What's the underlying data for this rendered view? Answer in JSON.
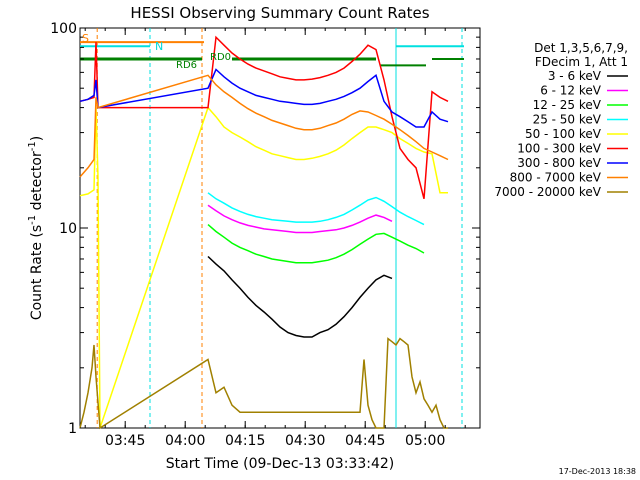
{
  "chart_data": {
    "type": "line",
    "title": "HESSI Observing Summary Count Rates",
    "xlabel": "Start Time (09-Dec-13 03:33:42)",
    "ylabel_main": "Count Rate (s",
    "ylabel_sup1": "-1",
    "ylabel_mid": " detector",
    "ylabel_sup2": "-1",
    "ylabel_end": ")",
    "y_scale": "log",
    "ylim": [
      1,
      100
    ],
    "xlim_minutes": [
      0,
      100
    ],
    "x_ticks": [
      {
        "m": 11.3,
        "label": "03:45"
      },
      {
        "m": 26.3,
        "label": "04:00"
      },
      {
        "m": 41.3,
        "label": "04:15"
      },
      {
        "m": 56.3,
        "label": "04:30"
      },
      {
        "m": 71.3,
        "label": "04:45"
      },
      {
        "m": 86.3,
        "label": "05:00"
      }
    ],
    "y_ticks": [
      {
        "v": 1,
        "label": "1"
      },
      {
        "v": 10,
        "label": "10"
      },
      {
        "v": 100,
        "label": "100"
      }
    ],
    "legend_header": [
      "Det 1,3,5,6,7,9,",
      "FDecim 1, Att 1"
    ],
    "series": [
      {
        "name": "3 - 6 keV",
        "color": "#000000",
        "x": [
          32,
          34,
          36,
          38,
          40,
          42,
          44,
          46,
          48,
          50,
          52,
          54,
          56,
          58,
          60,
          62,
          64,
          66,
          68,
          70,
          72,
          74,
          76,
          78
        ],
        "y": [
          7.2,
          6.6,
          6.1,
          5.5,
          5.0,
          4.5,
          4.1,
          3.8,
          3.5,
          3.2,
          3.0,
          2.9,
          2.85,
          2.85,
          3.0,
          3.1,
          3.3,
          3.6,
          4.0,
          4.5,
          5.0,
          5.5,
          5.8,
          5.6
        ]
      },
      {
        "name": "6 - 12 keV",
        "color": "#ff00ff",
        "x": [
          32,
          34,
          36,
          38,
          40,
          42,
          44,
          46,
          48,
          50,
          52,
          54,
          56,
          58,
          60,
          62,
          64,
          66,
          68,
          70,
          72,
          74,
          76,
          78
        ],
        "y": [
          13.0,
          12.2,
          11.5,
          11.0,
          10.6,
          10.3,
          10.1,
          9.9,
          9.8,
          9.7,
          9.6,
          9.5,
          9.5,
          9.5,
          9.6,
          9.7,
          9.8,
          10.0,
          10.3,
          10.7,
          11.2,
          11.6,
          11.3,
          10.8
        ]
      },
      {
        "name": "12 - 25 keV",
        "color": "#00ff00",
        "x": [
          32,
          34,
          36,
          38,
          40,
          42,
          44,
          46,
          48,
          50,
          52,
          54,
          56,
          58,
          60,
          62,
          64,
          66,
          68,
          70,
          72,
          74,
          76,
          78,
          80,
          82,
          84,
          86
        ],
        "y": [
          10.4,
          9.6,
          9.0,
          8.4,
          8.0,
          7.7,
          7.4,
          7.2,
          7.0,
          6.9,
          6.8,
          6.7,
          6.7,
          6.7,
          6.8,
          6.9,
          7.1,
          7.4,
          7.8,
          8.3,
          8.8,
          9.3,
          9.4,
          9.0,
          8.6,
          8.2,
          7.9,
          7.5
        ]
      },
      {
        "name": "25 - 50 keV",
        "color": "#00ffff",
        "x": [
          32,
          34,
          36,
          38,
          40,
          42,
          44,
          46,
          48,
          50,
          52,
          54,
          56,
          58,
          60,
          62,
          64,
          66,
          68,
          70,
          72,
          74,
          76,
          78,
          80,
          82,
          84,
          86
        ],
        "y": [
          15.0,
          14.0,
          13.3,
          12.6,
          12.1,
          11.7,
          11.4,
          11.2,
          11.0,
          10.9,
          10.8,
          10.7,
          10.7,
          10.7,
          10.8,
          11.0,
          11.3,
          11.7,
          12.3,
          13.0,
          13.8,
          14.2,
          13.6,
          12.8,
          12.0,
          11.4,
          10.9,
          10.4
        ]
      },
      {
        "name": "50 - 100 keV",
        "color": "#ffff00",
        "x": [
          0,
          2,
          3.5,
          4,
          4.5,
          5,
          32,
          34,
          36,
          38,
          40,
          42,
          44,
          46,
          48,
          50,
          52,
          54,
          56,
          58,
          60,
          62,
          64,
          66,
          68,
          70,
          72,
          74,
          76,
          78,
          80,
          82,
          84,
          86,
          88,
          90,
          92
        ],
        "y": [
          14.5,
          14.8,
          15.5,
          40,
          18,
          1,
          40,
          36,
          32,
          30,
          28.5,
          27,
          25.5,
          24.5,
          23.5,
          23,
          22.5,
          22,
          22,
          22.3,
          22.8,
          23.5,
          24.5,
          26,
          28,
          30,
          32,
          32,
          31,
          30,
          28,
          26.5,
          25,
          24,
          23.5,
          15,
          15
        ]
      },
      {
        "name": "100 - 300 keV",
        "color": "#ff0000",
        "x": [
          0,
          2,
          3.5,
          4,
          4.5,
          32,
          34,
          36,
          38,
          40,
          42,
          44,
          46,
          48,
          50,
          52,
          54,
          56,
          58,
          60,
          62,
          64,
          66,
          68,
          70,
          72,
          74,
          76,
          78,
          80,
          82,
          84,
          86,
          88,
          90,
          92
        ],
        "y": [
          43,
          44,
          45,
          85,
          40,
          40,
          90,
          82,
          75,
          70,
          66,
          63,
          61,
          59,
          57,
          56,
          55,
          55,
          55.5,
          56.5,
          58,
          60,
          63,
          68,
          74,
          82,
          78,
          55,
          36,
          25,
          22,
          20,
          14,
          48,
          45,
          43
        ]
      },
      {
        "name": "300 - 800 keV",
        "color": "#0000ff",
        "x": [
          0,
          2,
          3.5,
          4,
          4.5,
          32,
          34,
          36,
          38,
          40,
          42,
          44,
          46,
          48,
          50,
          52,
          54,
          56,
          58,
          60,
          62,
          64,
          66,
          68,
          70,
          72,
          74,
          76,
          78,
          80,
          82,
          84,
          86,
          88,
          90,
          92
        ],
        "y": [
          43,
          44,
          46,
          55,
          40,
          50,
          62,
          57,
          53,
          50,
          48,
          46,
          45,
          44,
          43,
          42.5,
          42,
          41.5,
          41.5,
          42,
          43,
          44,
          45.5,
          47.5,
          50,
          54,
          58,
          43,
          38,
          36,
          34,
          32,
          32,
          38,
          35,
          34
        ]
      },
      {
        "name": "800 - 7000 keV",
        "color": "#ff8000",
        "x": [
          0,
          2,
          3.5,
          4,
          4.5,
          32,
          34,
          36,
          38,
          40,
          42,
          44,
          46,
          48,
          50,
          52,
          54,
          56,
          58,
          60,
          62,
          64,
          66,
          68,
          70,
          72,
          74,
          76,
          78,
          80,
          82,
          84,
          86,
          88,
          90,
          92
        ],
        "y": [
          18,
          20,
          22,
          45,
          40,
          58,
          52,
          48,
          45,
          42,
          39.5,
          37.5,
          36,
          34.5,
          33.5,
          32.5,
          31.5,
          31,
          31,
          31.5,
          32.5,
          33.5,
          35,
          37,
          38.5,
          38,
          36.5,
          35,
          33,
          31,
          29,
          27,
          25,
          24,
          23,
          22
        ]
      },
      {
        "name": "7000 - 20000 keV",
        "color": "#a08000",
        "x": [
          0,
          1,
          2,
          3,
          3.5,
          4,
          5,
          32,
          34,
          36,
          38,
          40,
          70,
          71,
          72,
          73,
          74,
          75,
          76,
          77,
          78,
          79,
          80,
          81,
          82,
          83,
          84,
          85,
          86,
          87,
          88,
          89,
          90,
          91,
          92
        ],
        "y": [
          1.0,
          1.2,
          1.5,
          2.0,
          2.6,
          1.8,
          1.0,
          2.2,
          1.5,
          1.6,
          1.3,
          1.2,
          1.2,
          2.2,
          1.3,
          1.1,
          1.0,
          1.0,
          1.0,
          2.8,
          2.7,
          2.6,
          2.8,
          2.7,
          2.6,
          1.8,
          1.5,
          1.7,
          1.4,
          1.3,
          1.2,
          1.3,
          1.1,
          1.0,
          1.0
        ]
      }
    ],
    "overlays": {
      "orange_top_label": "S",
      "cyan_top_label": "N",
      "green_label_a": "RD6",
      "green_label_b": "RD0"
    },
    "timestamp": "17-Dec-2013 18:38"
  }
}
